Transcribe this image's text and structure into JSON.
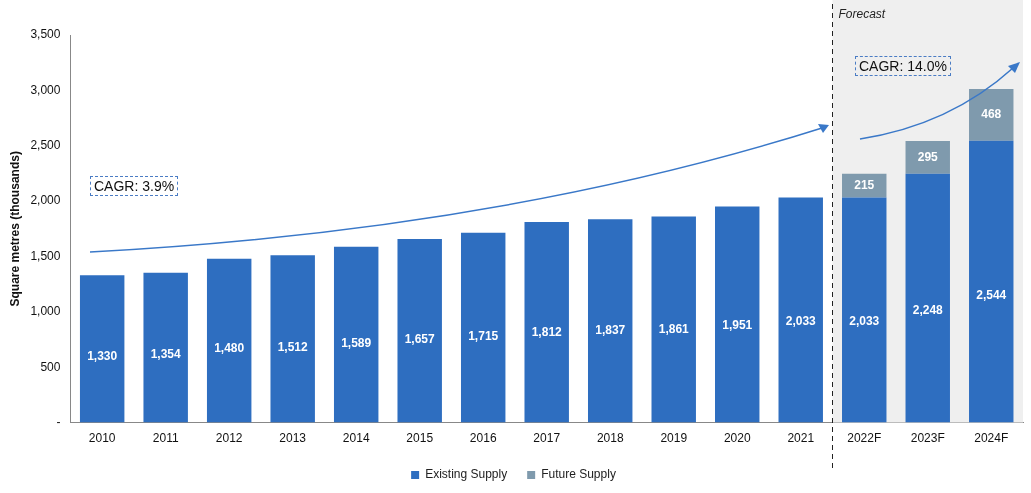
{
  "chart_data": {
    "type": "bar",
    "stacked": true,
    "ylabel": "Square metres (thousands)",
    "categories": [
      "2010",
      "2011",
      "2012",
      "2013",
      "2014",
      "2015",
      "2016",
      "2017",
      "2018",
      "2019",
      "2020",
      "2021",
      "2022F",
      "2023F",
      "2024F"
    ],
    "series": [
      {
        "name": "Existing Supply",
        "color": "#2e6ec0",
        "values": [
          1330,
          1354,
          1480,
          1512,
          1589,
          1657,
          1715,
          1812,
          1837,
          1861,
          1951,
          2033,
          2033,
          2248,
          2544
        ],
        "value_labels": [
          "1,330",
          "1,354",
          "1,480",
          "1,512",
          "1,589",
          "1,657",
          "1,715",
          "1,812",
          "1,837",
          "1,861",
          "1,951",
          "2,033",
          "2,033",
          "2,248",
          "2,544"
        ]
      },
      {
        "name": "Future Supply",
        "color": "#7f9aad",
        "values": [
          null,
          null,
          null,
          null,
          null,
          null,
          null,
          null,
          null,
          null,
          null,
          null,
          215,
          295,
          468
        ],
        "value_labels": [
          null,
          null,
          null,
          null,
          null,
          null,
          null,
          null,
          null,
          null,
          null,
          null,
          "215",
          "295",
          "468"
        ]
      }
    ],
    "ylim": [
      0,
      3500
    ],
    "yticks": [
      {
        "value": 0,
        "label": "-"
      },
      {
        "value": 500,
        "label": "500"
      },
      {
        "value": 1000,
        "label": "1,000"
      },
      {
        "value": 1500,
        "label": "1,500"
      },
      {
        "value": 2000,
        "label": "2,000"
      },
      {
        "value": 2500,
        "label": "2,500"
      },
      {
        "value": 3000,
        "label": "3,000"
      },
      {
        "value": 3500,
        "label": "3,500"
      }
    ],
    "grid": false,
    "legend": "bottom",
    "bands": [
      {
        "axis": "x",
        "from": "2022F",
        "to": "2024F",
        "label": "Forecast",
        "color": "#efefef"
      }
    ],
    "annotations": [
      "CAGR: 3.9%",
      "CAGR: 14.0%"
    ]
  }
}
